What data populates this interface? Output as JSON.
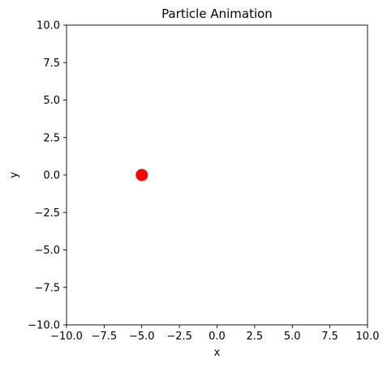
{
  "chart_data": {
    "type": "scatter",
    "title": "Particle Animation",
    "xlabel": "x",
    "ylabel": "y",
    "xlim": [
      -10,
      10
    ],
    "ylim": [
      -10,
      10
    ],
    "grid": false,
    "x_ticks": [
      -10.0,
      -7.5,
      -5.0,
      -2.5,
      0.0,
      2.5,
      5.0,
      7.5,
      10.0
    ],
    "x_tick_labels": [
      "−10.0",
      "−7.5",
      "−5.0",
      "−2.5",
      "0.0",
      "2.5",
      "5.0",
      "7.5",
      "10.0"
    ],
    "y_ticks": [
      10.0,
      7.5,
      5.0,
      2.5,
      0.0,
      -2.5,
      -5.0,
      -7.5,
      -10.0
    ],
    "y_tick_labels": [
      "10.0",
      "7.5",
      "5.0",
      "2.5",
      "0.0",
      "−2.5",
      "−5.0",
      "−7.5",
      "−10.0"
    ],
    "points": [
      {
        "x": -5.0,
        "y": 0.0
      }
    ],
    "point_color": "#ff0000"
  }
}
